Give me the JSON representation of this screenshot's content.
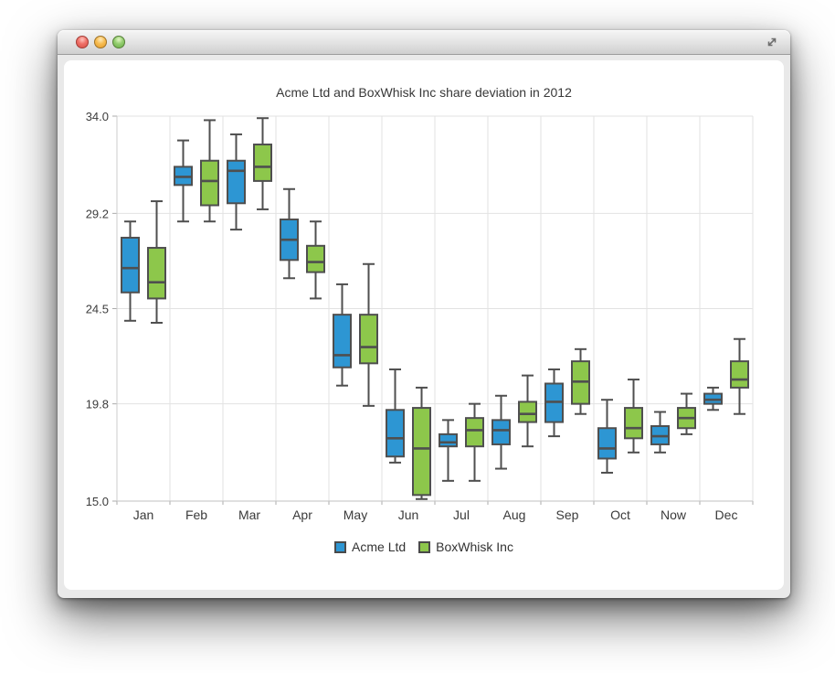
{
  "window": {
    "buttons": [
      {
        "name": "close",
        "color": "#ef7068"
      },
      {
        "name": "minimize",
        "color": "#f7bc51"
      },
      {
        "name": "zoom",
        "color": "#93cd6f"
      }
    ],
    "icons": {
      "resize": "diagonal-resize-arrows"
    }
  },
  "chart": {
    "title": "Acme Ltd and BoxWhisk Inc share deviation in 2012",
    "legend": [
      {
        "label": "Acme Ltd",
        "color": "#2d96d3"
      },
      {
        "label": "BoxWhisk Inc",
        "color": "#8dc74b"
      }
    ]
  },
  "chart_data": {
    "type": "boxplot",
    "title": "Acme Ltd and BoxWhisk Inc share deviation in 2012",
    "categories": [
      "Jan",
      "Feb",
      "Mar",
      "Apr",
      "May",
      "Jun",
      "Jul",
      "Aug",
      "Sep",
      "Oct",
      "Now",
      "Dec"
    ],
    "ylim": [
      15.0,
      34.0
    ],
    "y_ticks": [
      {
        "value": 34.0,
        "label": "34.0"
      },
      {
        "value": 29.2,
        "label": "29.2"
      },
      {
        "value": 24.5,
        "label": "24.5"
      },
      {
        "value": 19.8,
        "label": "19.8"
      },
      {
        "value": 15.0,
        "label": "15.0"
      }
    ],
    "grid": true,
    "legend_position": "bottom",
    "value_format": "[low, q1, median, q3, high]",
    "series": [
      {
        "name": "Acme Ltd",
        "color": "#2d96d3",
        "values": [
          [
            23.9,
            25.3,
            26.5,
            28.0,
            28.8
          ],
          [
            28.8,
            30.6,
            31.0,
            31.5,
            32.8
          ],
          [
            28.4,
            29.7,
            31.3,
            31.8,
            33.1
          ],
          [
            26.0,
            26.9,
            27.9,
            28.9,
            30.4
          ],
          [
            20.7,
            21.6,
            22.2,
            24.2,
            25.7
          ],
          [
            16.9,
            17.2,
            18.1,
            19.5,
            21.5
          ],
          [
            16.0,
            17.7,
            17.9,
            18.3,
            19.0
          ],
          [
            16.6,
            17.8,
            18.5,
            19.0,
            20.2
          ],
          [
            18.2,
            18.9,
            19.9,
            20.8,
            21.5
          ],
          [
            16.4,
            17.1,
            17.6,
            18.6,
            20.0
          ],
          [
            17.4,
            17.8,
            18.2,
            18.7,
            19.4
          ],
          [
            19.5,
            19.8,
            20.0,
            20.3,
            20.6
          ]
        ]
      },
      {
        "name": "BoxWhisk Inc",
        "color": "#8dc74b",
        "values": [
          [
            23.8,
            25.0,
            25.8,
            27.5,
            29.8
          ],
          [
            28.8,
            29.6,
            30.8,
            31.8,
            33.8
          ],
          [
            29.4,
            30.8,
            31.5,
            32.6,
            33.9
          ],
          [
            25.0,
            26.3,
            26.8,
            27.6,
            28.8
          ],
          [
            19.7,
            21.8,
            22.6,
            24.2,
            26.7
          ],
          [
            15.1,
            15.3,
            17.6,
            19.6,
            20.6
          ],
          [
            16.0,
            17.7,
            18.5,
            19.1,
            19.8
          ],
          [
            17.7,
            18.9,
            19.3,
            19.9,
            21.2
          ],
          [
            19.3,
            19.8,
            20.9,
            21.9,
            22.5
          ],
          [
            17.4,
            18.1,
            18.6,
            19.6,
            21.0
          ],
          [
            18.3,
            18.6,
            19.1,
            19.6,
            20.3
          ],
          [
            19.3,
            20.6,
            21.0,
            21.9,
            23.0
          ]
        ]
      }
    ]
  }
}
